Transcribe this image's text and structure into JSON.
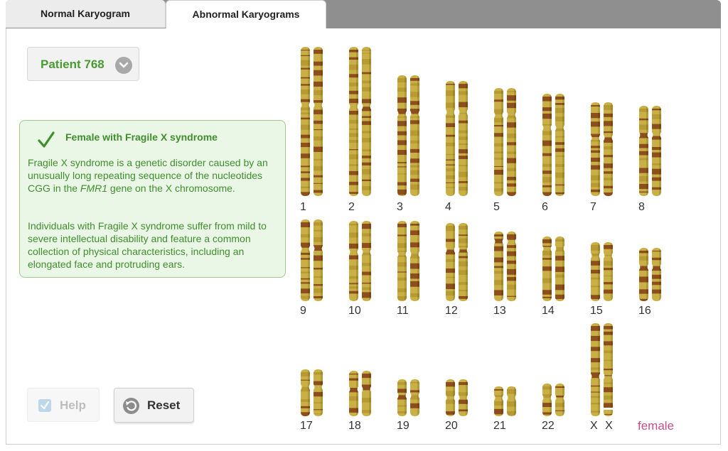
{
  "tabs": [
    {
      "label": "Normal Karyogram",
      "active": false
    },
    {
      "label": "Abnormal Karyograms",
      "active": true
    }
  ],
  "patient": {
    "label": "Patient 768"
  },
  "diagnosis": {
    "title": "Female with Fragile X syndrome",
    "paragraph1_pre": "Fragile X syndrome is a genetic disorder caused by an unusually long repeating sequence of the nucleotides CGG in the ",
    "paragraph1_gene": "FMR1",
    "paragraph1_post": " gene on the X chromosome.",
    "paragraph2": "Individuals with Fragile X syndrome suffer from mild to severe intellectual disability and feature a common collection of physical characteristics, including an elongated face and protruding ears."
  },
  "controls": {
    "help_label": "Help",
    "help_checked": true,
    "reset_label": "Reset"
  },
  "karyotype": {
    "sex_label": "female",
    "chromosomes": [
      "1",
      "2",
      "3",
      "4",
      "5",
      "6",
      "7",
      "8",
      "9",
      "10",
      "11",
      "12",
      "13",
      "14",
      "15",
      "16",
      "17",
      "18",
      "19",
      "20",
      "21",
      "22",
      "X X"
    ]
  },
  "colors": {
    "accent_green": "#4a9a32",
    "sex_label": "#c2508f",
    "chromosome_light": "#c8b045",
    "chromosome_dark": "#8e4e1c"
  }
}
